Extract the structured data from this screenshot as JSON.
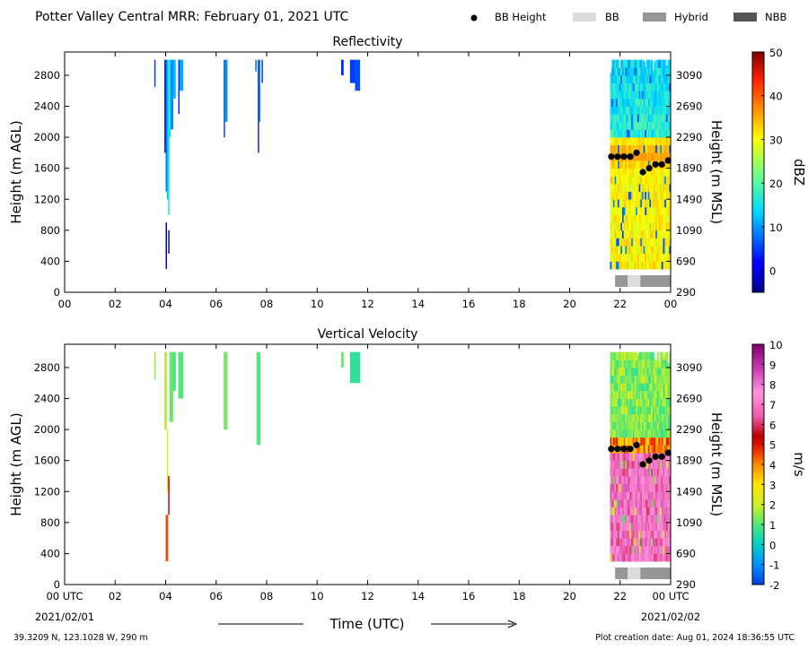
{
  "header": {
    "title": "Potter Valley Central MRR:  February 01, 2021 UTC",
    "legend": [
      {
        "label": "BB Height",
        "kind": "dot",
        "color": "#000000"
      },
      {
        "label": "BB",
        "kind": "box",
        "color": "#dcdcdc"
      },
      {
        "label": "Hybrid",
        "kind": "box",
        "color": "#969696"
      },
      {
        "label": "NBB",
        "kind": "box",
        "color": "#555555"
      }
    ]
  },
  "footer": {
    "location": "39.3209 N, 123.1028 W, 290 m",
    "creation": "Plot creation date: Aug 01, 2024 18:36:55 UTC",
    "time_label": "Time (UTC)",
    "start_date": "2021/02/01",
    "end_date": "2021/02/02"
  },
  "chart_data": [
    {
      "type": "heatmap",
      "title": "Reflectivity",
      "ylabel": "Height (m AGL)",
      "ylabel_right": "Height (m MSL)",
      "colorbar_label": "dBZ",
      "colorbar_ticks": [
        "0",
        "10",
        "20",
        "30",
        "40",
        "50"
      ],
      "colorbar_range": [
        -5,
        50
      ],
      "colormap": "jet",
      "x_ticks": [
        "00",
        "02",
        "04",
        "06",
        "08",
        "10",
        "12",
        "14",
        "16",
        "18",
        "20",
        "22",
        "00"
      ],
      "xlim": [
        0,
        24
      ],
      "y_ticks": [
        "0",
        "400",
        "800",
        "1200",
        "1600",
        "2000",
        "2400",
        "2800"
      ],
      "y_ticks_right": [
        "290",
        "690",
        "1090",
        "1490",
        "1890",
        "2290",
        "2690",
        "3090"
      ],
      "ylim": [
        0,
        3100
      ],
      "echo_segments": [
        {
          "t": [
            3.55,
            3.6
          ],
          "h": [
            2650,
            3000
          ],
          "v": 5
        },
        {
          "t": [
            3.95,
            4.0
          ],
          "h": [
            1800,
            3000
          ],
          "v": 2
        },
        {
          "t": [
            4.0,
            4.05
          ],
          "h": [
            1300,
            3000
          ],
          "v": 8
        },
        {
          "t": [
            4.05,
            4.1
          ],
          "h": [
            1200,
            3000
          ],
          "v": 12
        },
        {
          "t": [
            4.1,
            4.15
          ],
          "h": [
            1000,
            3000
          ],
          "v": 16
        },
        {
          "t": [
            4.15,
            4.2
          ],
          "h": [
            2000,
            3000
          ],
          "v": 14
        },
        {
          "t": [
            4.0,
            4.05
          ],
          "h": [
            300,
            900
          ],
          "v": -2
        },
        {
          "t": [
            4.1,
            4.15
          ],
          "h": [
            500,
            800
          ],
          "v": 0
        },
        {
          "t": [
            4.2,
            4.3
          ],
          "h": [
            2100,
            3000
          ],
          "v": 9
        },
        {
          "t": [
            4.3,
            4.4
          ],
          "h": [
            2500,
            3000
          ],
          "v": 12
        },
        {
          "t": [
            4.5,
            4.55
          ],
          "h": [
            2300,
            3000
          ],
          "v": 4
        },
        {
          "t": [
            4.55,
            4.7
          ],
          "h": [
            2600,
            3000
          ],
          "v": 11
        },
        {
          "t": [
            6.3,
            6.35
          ],
          "h": [
            2000,
            3000
          ],
          "v": 6
        },
        {
          "t": [
            6.35,
            6.45
          ],
          "h": [
            2200,
            3000
          ],
          "v": 10
        },
        {
          "t": [
            7.55,
            7.6
          ],
          "h": [
            2850,
            3000
          ],
          "v": 8
        },
        {
          "t": [
            7.65,
            7.7
          ],
          "h": [
            1800,
            3000
          ],
          "v": 4
        },
        {
          "t": [
            7.7,
            7.75
          ],
          "h": [
            2200,
            3000
          ],
          "v": 9
        },
        {
          "t": [
            7.8,
            7.85
          ],
          "h": [
            2700,
            3000
          ],
          "v": 5
        },
        {
          "t": [
            10.95,
            11.05
          ],
          "h": [
            2800,
            3000
          ],
          "v": 4
        },
        {
          "t": [
            11.3,
            11.5
          ],
          "h": [
            2700,
            3000
          ],
          "v": 5
        },
        {
          "t": [
            11.5,
            11.7
          ],
          "h": [
            2600,
            3000
          ],
          "v": 6
        }
      ],
      "storm_period": {
        "t": [
          21.6,
          24.0
        ],
        "h_top": 3000,
        "h_bottom": 300
      },
      "bright_band": [
        {
          "t": 21.65,
          "h": 1750
        },
        {
          "t": 21.9,
          "h": 1750
        },
        {
          "t": 22.15,
          "h": 1750
        },
        {
          "t": 22.4,
          "h": 1750
        },
        {
          "t": 22.65,
          "h": 1800
        },
        {
          "t": 22.9,
          "h": 1550
        },
        {
          "t": 23.15,
          "h": 1600
        },
        {
          "t": 23.4,
          "h": 1650
        },
        {
          "t": 23.65,
          "h": 1650
        },
        {
          "t": 23.9,
          "h": 1700
        }
      ],
      "bb_class": [
        {
          "t": [
            21.8,
            22.3
          ],
          "class": "Hybrid"
        },
        {
          "t": [
            22.3,
            22.8
          ],
          "class": "BB"
        },
        {
          "t": [
            22.8,
            24.0
          ],
          "class": "Hybrid"
        }
      ]
    },
    {
      "type": "heatmap",
      "title": "Vertical Velocity",
      "ylabel": "Height (m AGL)",
      "ylabel_right": "Height (m MSL)",
      "colorbar_label": "m/s",
      "colorbar_ticks": [
        "-2",
        "-1",
        "0",
        "1",
        "2",
        "3",
        "4",
        "5",
        "6",
        "7",
        "8",
        "9",
        "10"
      ],
      "colorbar_range": [
        -2,
        10
      ],
      "colormap": "velocity",
      "x_ticks": [
        "00 UTC",
        "02",
        "04",
        "06",
        "08",
        "10",
        "12",
        "14",
        "16",
        "18",
        "20",
        "22",
        "00 UTC"
      ],
      "xlim": [
        0,
        24
      ],
      "y_ticks": [
        "0",
        "400",
        "800",
        "1200",
        "1600",
        "2000",
        "2400",
        "2800"
      ],
      "y_ticks_right": [
        "290",
        "690",
        "1090",
        "1490",
        "1890",
        "2290",
        "2690",
        "3090"
      ],
      "ylim": [
        0,
        3100
      ],
      "echo_segments": [
        {
          "t": [
            3.55,
            3.6
          ],
          "h": [
            2650,
            3000
          ],
          "v": 1.5
        },
        {
          "t": [
            3.95,
            4.05
          ],
          "h": [
            2000,
            3000
          ],
          "v": 1.8
        },
        {
          "t": [
            4.05,
            4.1
          ],
          "h": [
            1200,
            2000
          ],
          "v": 2.5
        },
        {
          "t": [
            4.1,
            4.15
          ],
          "h": [
            900,
            1400
          ],
          "v": 5.5
        },
        {
          "t": [
            4.0,
            4.1
          ],
          "h": [
            300,
            900
          ],
          "v": 4.5
        },
        {
          "t": [
            4.15,
            4.3
          ],
          "h": [
            2100,
            3000
          ],
          "v": 1.2
        },
        {
          "t": [
            4.3,
            4.4
          ],
          "h": [
            2500,
            3000
          ],
          "v": 0.8
        },
        {
          "t": [
            4.5,
            4.7
          ],
          "h": [
            2400,
            3000
          ],
          "v": 1.0
        },
        {
          "t": [
            6.3,
            6.45
          ],
          "h": [
            2000,
            3000
          ],
          "v": 1.3
        },
        {
          "t": [
            7.6,
            7.75
          ],
          "h": [
            1800,
            3000
          ],
          "v": 1.0
        },
        {
          "t": [
            10.95,
            11.05
          ],
          "h": [
            2800,
            3000
          ],
          "v": 1.2
        },
        {
          "t": [
            11.3,
            11.7
          ],
          "h": [
            2600,
            3000
          ],
          "v": 0.6
        }
      ],
      "storm_period": {
        "t": [
          21.6,
          24.0
        ],
        "h_top": 3000,
        "h_bottom": 300
      },
      "bright_band": [
        {
          "t": 21.65,
          "h": 1750
        },
        {
          "t": 21.9,
          "h": 1750
        },
        {
          "t": 22.15,
          "h": 1750
        },
        {
          "t": 22.4,
          "h": 1750
        },
        {
          "t": 22.65,
          "h": 1800
        },
        {
          "t": 22.9,
          "h": 1550
        },
        {
          "t": 23.15,
          "h": 1600
        },
        {
          "t": 23.4,
          "h": 1650
        },
        {
          "t": 23.65,
          "h": 1650
        },
        {
          "t": 23.9,
          "h": 1700
        }
      ],
      "bb_class": [
        {
          "t": [
            21.8,
            22.3
          ],
          "class": "Hybrid"
        },
        {
          "t": [
            22.3,
            22.8
          ],
          "class": "BB"
        },
        {
          "t": [
            22.8,
            24.0
          ],
          "class": "Hybrid"
        }
      ]
    }
  ]
}
